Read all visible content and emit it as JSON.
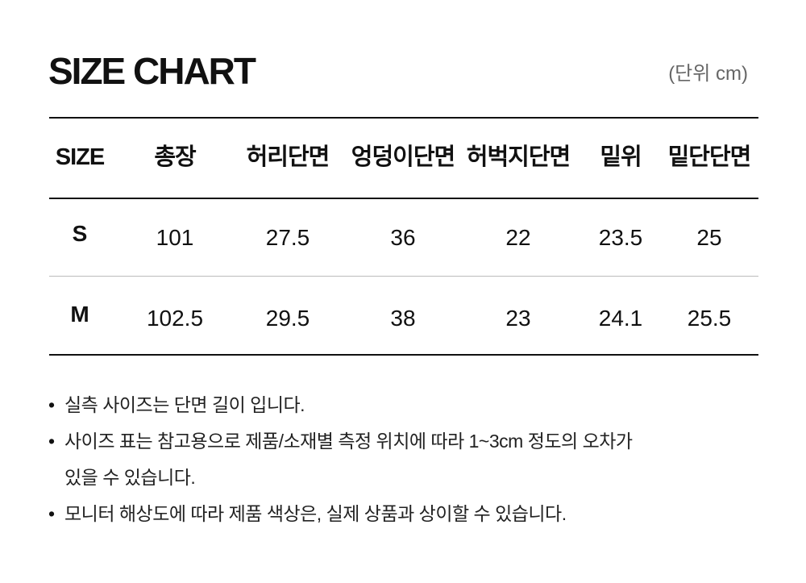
{
  "header": {
    "title": "SIZE CHART",
    "unit": "(단위 cm)"
  },
  "table": {
    "columns": [
      "SIZE",
      "총장",
      "허리단면",
      "엉덩이단면",
      "허벅지단면",
      "밑위",
      "밑단단면"
    ],
    "rows": [
      [
        "S",
        101,
        27.5,
        36,
        22,
        23.5,
        25
      ],
      [
        "M",
        102.5,
        29.5,
        38,
        23,
        24.1,
        25.5
      ]
    ]
  },
  "notes": [
    [
      "실측 사이즈는 단면 길이 입니다."
    ],
    [
      "사이즈 표는 참고용으로 제품/소재별 측정 위치에 따라 1~3cm 정도의 오차가",
      "있을 수 있습니다."
    ],
    [
      "모니터 해상도에 따라 제품 색상은, 실제 상품과 상이할 수 있습니다."
    ]
  ]
}
